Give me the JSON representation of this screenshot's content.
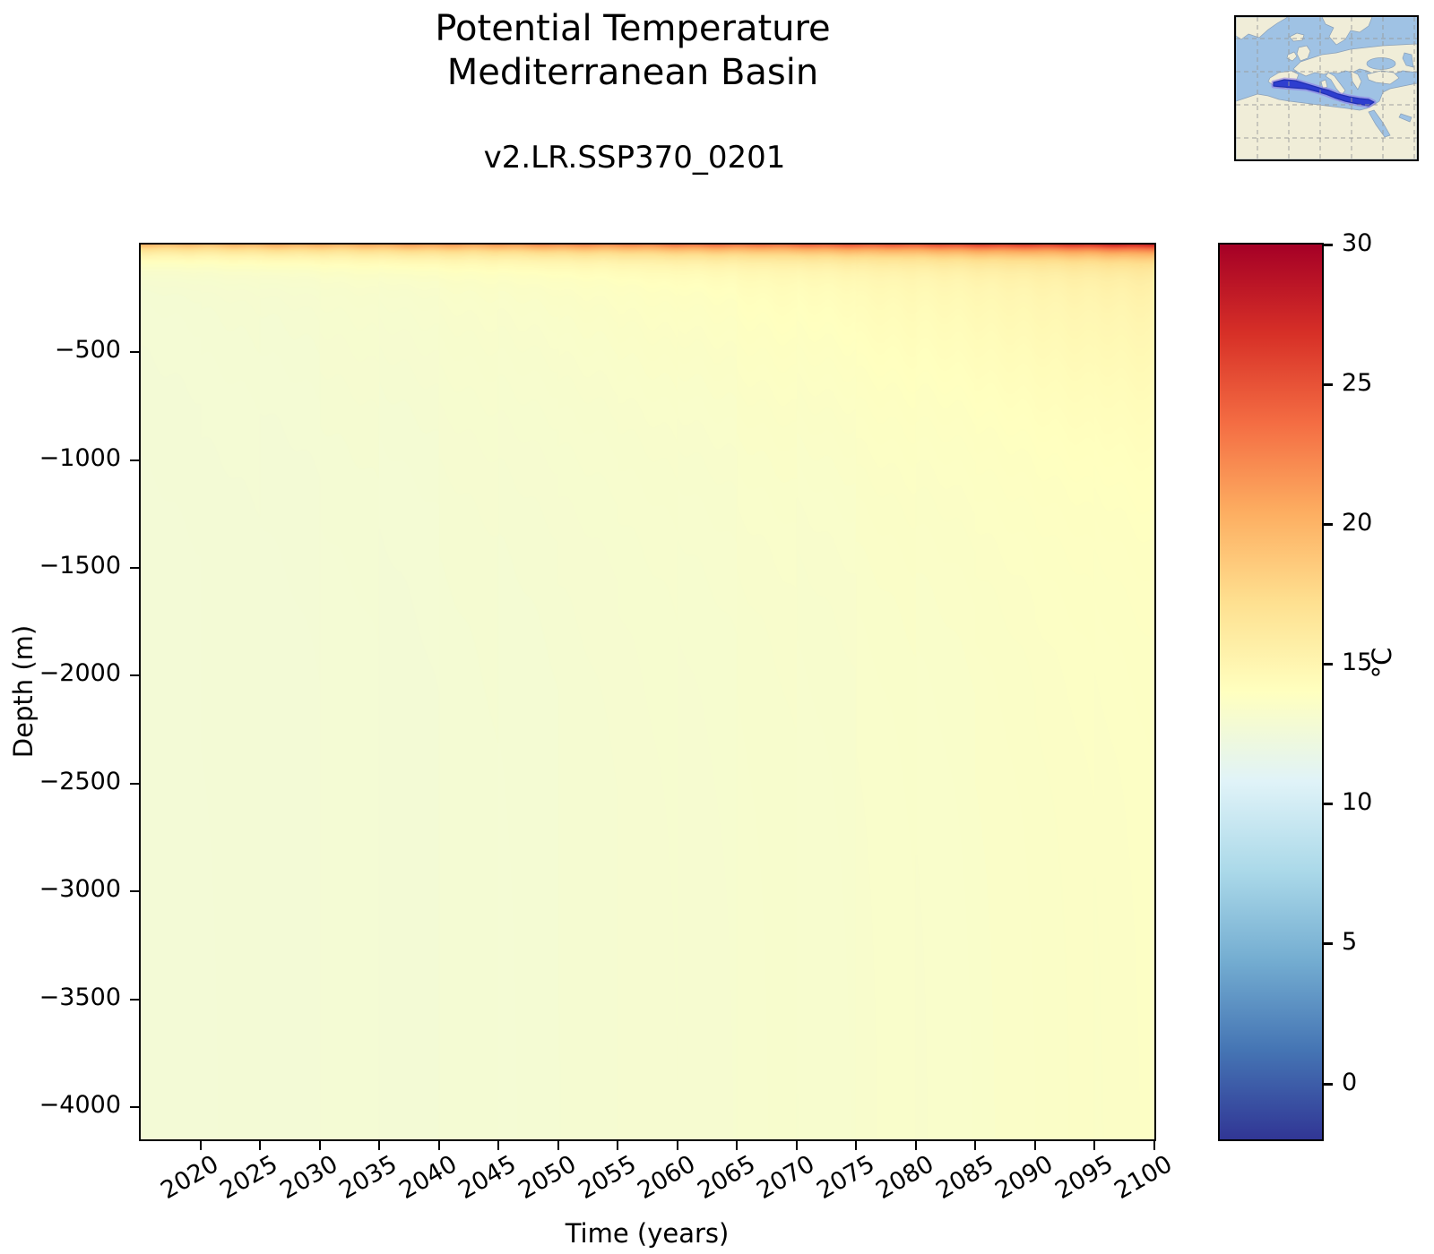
{
  "title": {
    "line1": "Potential Temperature",
    "line2": "Mediterranean Basin"
  },
  "subtitle": "v2.LR.SSP370_0201",
  "axes": {
    "x_label": "Time (years)",
    "y_label": "Depth (m)",
    "x_tick_labels": [
      "2020",
      "2025",
      "2030",
      "2035",
      "2040",
      "2045",
      "2050",
      "2055",
      "2060",
      "2065",
      "2070",
      "2075",
      "2080",
      "2085",
      "2090",
      "2095",
      "2100"
    ],
    "x_tick_years": [
      2020,
      2025,
      2030,
      2035,
      2040,
      2045,
      2050,
      2055,
      2060,
      2065,
      2070,
      2075,
      2080,
      2085,
      2090,
      2095,
      2100
    ],
    "y_tick_labels": [
      "−500",
      "−1000",
      "−1500",
      "−2000",
      "−2500",
      "−3000",
      "−3500",
      "−4000"
    ],
    "y_tick_depths": [
      -500,
      -1000,
      -1500,
      -2000,
      -2500,
      -3000,
      -3500,
      -4000
    ],
    "xlim": [
      2015,
      2100
    ],
    "ylim_m": [
      -4150,
      0
    ]
  },
  "colorbar": {
    "label": "°C",
    "tick_labels": [
      "30",
      "25",
      "20",
      "15",
      "10",
      "5",
      "0"
    ],
    "tick_values": [
      30,
      25,
      20,
      15,
      10,
      5,
      0
    ],
    "vmin": -2,
    "vmax": 30,
    "colormap_name": "RdYlBu_r",
    "colors_low_to_high": [
      "#313695",
      "#4575b4",
      "#74add1",
      "#abd9e9",
      "#e0f3f8",
      "#ffffbf",
      "#fee090",
      "#fdae61",
      "#f46d43",
      "#d73027",
      "#a50026"
    ]
  },
  "chart_data": {
    "type": "heatmap",
    "title": "Potential Temperature — Mediterranean Basin (v2.LR.SSP370_0201)",
    "xlabel": "Time (years)",
    "ylabel": "Depth (m)",
    "x_years": [
      2015,
      2020,
      2025,
      2030,
      2035,
      2040,
      2045,
      2050,
      2055,
      2060,
      2065,
      2070,
      2075,
      2080,
      2085,
      2090,
      2095,
      2100
    ],
    "surface_temp_c": [
      19.4,
      19.7,
      20.0,
      20.3,
      20.7,
      21.1,
      21.5,
      21.9,
      22.4,
      22.9,
      23.3,
      23.8,
      24.3,
      24.8,
      25.4,
      26.0,
      26.6,
      27.3
    ],
    "deep_temp_c": [
      12.7,
      12.72,
      12.74,
      12.77,
      12.8,
      12.84,
      12.88,
      12.93,
      12.98,
      13.04,
      13.1,
      13.17,
      13.24,
      13.32,
      13.4,
      13.49,
      13.58,
      13.68
    ],
    "subsurface_anomaly_c": [
      0.25,
      0.3,
      0.38,
      0.46,
      0.55,
      0.65,
      0.76,
      0.88,
      1.0,
      1.14,
      1.28,
      1.43,
      1.58,
      1.74,
      1.9,
      2.07,
      2.24,
      2.42
    ],
    "surface_efold_depth_m": 45,
    "subsurface_efold_depth_m": 600,
    "depth_range_m": [
      0,
      4150
    ],
    "vmin": -2,
    "vmax": 30,
    "grid": false,
    "legend": "colorbar-right"
  },
  "inset_map": {
    "region": "Mediterranean Basin highlighted",
    "ocean_color": "#9fc2e4",
    "land_color": "#f0edd8",
    "highlight_fill": "#2e3ecf",
    "highlight_glow": "#8a75e8",
    "grid_color": "#999999"
  }
}
